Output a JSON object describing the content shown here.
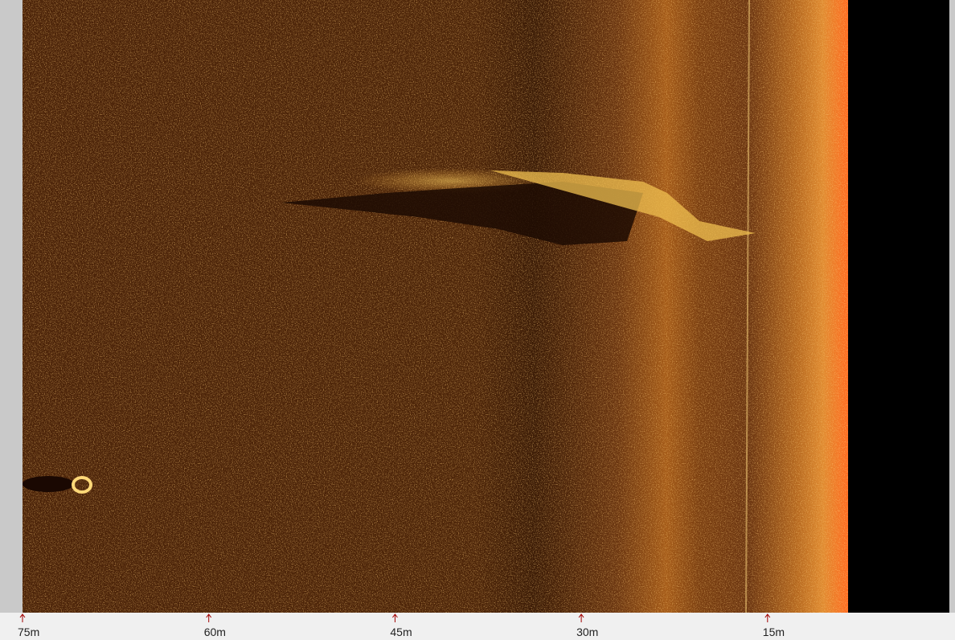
{
  "range_scale": {
    "ticks": [
      "75m",
      "60m",
      "45m",
      "30m",
      "15m"
    ]
  }
}
